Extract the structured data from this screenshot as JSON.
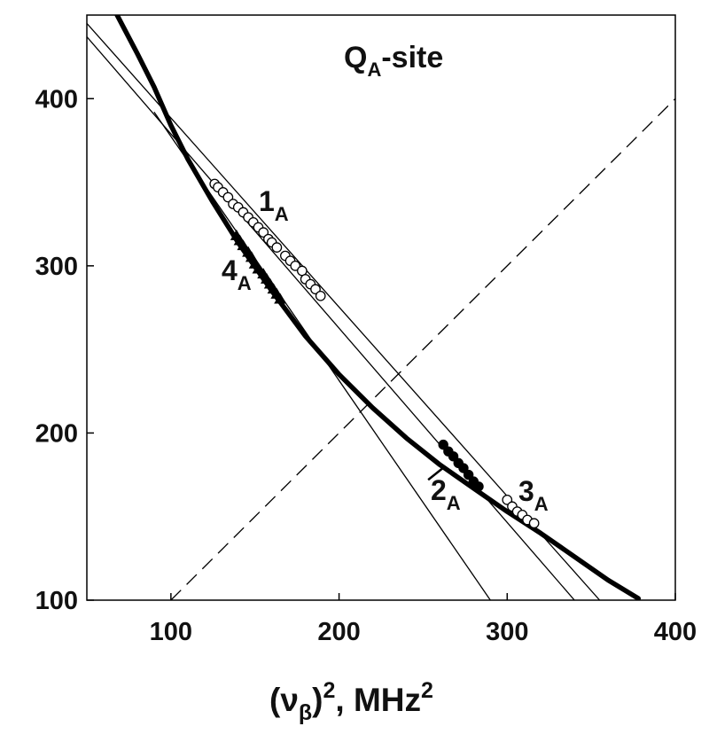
{
  "chart_data": {
    "type": "scatter",
    "title": "Q",
    "title_sub": "A",
    "title_rest": "-site",
    "xlabel_parts": {
      "open": "(ν",
      "sub": "β",
      "close": ")",
      "sup": "2",
      "unit": ", MHz",
      "unit_sup": "2"
    },
    "ylabel": "",
    "xlim": [
      50,
      400
    ],
    "ylim": [
      100,
      450
    ],
    "xticks": [
      100,
      200,
      300,
      400
    ],
    "yticks": [
      100,
      200,
      300,
      400
    ],
    "grid": false,
    "series": [
      {
        "label": "1",
        "label_sub": "A",
        "marker": "open-circle",
        "points": [
          [
            126,
            349
          ],
          [
            128,
            347
          ],
          [
            131,
            344
          ],
          [
            134,
            341
          ],
          [
            137,
            337
          ],
          [
            140,
            335
          ],
          [
            143,
            332
          ],
          [
            146,
            329
          ],
          [
            149,
            326
          ],
          [
            152,
            323
          ],
          [
            155,
            320
          ],
          [
            158,
            316
          ],
          [
            160,
            314
          ],
          [
            163,
            311
          ],
          [
            168,
            306
          ],
          [
            171,
            303
          ],
          [
            174,
            300
          ],
          [
            178,
            297
          ],
          [
            180,
            292
          ],
          [
            183,
            289
          ],
          [
            186,
            286
          ],
          [
            189,
            282
          ]
        ]
      },
      {
        "label": "2",
        "label_sub": "A",
        "marker": "filled-circle",
        "points": [
          [
            262,
            193
          ],
          [
            265,
            189
          ],
          [
            268,
            186
          ],
          [
            271,
            182
          ],
          [
            274,
            179
          ],
          [
            277,
            175
          ],
          [
            280,
            171
          ],
          [
            283,
            168
          ]
        ]
      },
      {
        "label": "3",
        "label_sub": "A",
        "marker": "open-circle",
        "points": [
          [
            300,
            160
          ],
          [
            303,
            156
          ],
          [
            306,
            153
          ],
          [
            309,
            151
          ],
          [
            312,
            148
          ],
          [
            316,
            146
          ]
        ]
      },
      {
        "label": "4",
        "label_sub": "A",
        "marker": "filled-triangle",
        "points": [
          [
            139,
            318
          ],
          [
            141,
            315
          ],
          [
            143,
            312
          ],
          [
            146,
            308
          ],
          [
            148,
            305
          ],
          [
            150,
            301
          ],
          [
            152,
            298
          ],
          [
            155,
            295
          ],
          [
            157,
            292
          ],
          [
            159,
            289
          ],
          [
            161,
            286
          ],
          [
            163,
            283
          ],
          [
            165,
            280
          ]
        ]
      }
    ],
    "lines": [
      {
        "name": "diagonal-dashed",
        "style": "dashed",
        "x": [
          100,
          400
        ],
        "y": [
          100,
          400
        ]
      },
      {
        "name": "fit-line-a",
        "style": "thin",
        "x": [
          50,
          355
        ],
        "y": [
          445,
          100
        ]
      },
      {
        "name": "fit-line-b",
        "style": "thin",
        "x": [
          50,
          340
        ],
        "y": [
          437,
          100
        ]
      },
      {
        "name": "fit-line-c",
        "style": "thin",
        "x": [
          90,
          290
        ],
        "y": [
          392,
          100
        ]
      },
      {
        "name": "short-segment-2a",
        "style": "medium",
        "x": [
          253,
          263
        ],
        "y": [
          172,
          180
        ]
      }
    ],
    "curve": {
      "name": "hyperbola-thick",
      "style": "thick",
      "x": [
        68,
        80,
        90,
        100,
        110,
        125,
        140,
        160,
        180,
        200,
        220,
        240,
        260,
        280,
        300,
        320,
        340,
        360,
        378
      ],
      "y": [
        450,
        427,
        407,
        384,
        364,
        338,
        314,
        285,
        258,
        235,
        215,
        197,
        181,
        167,
        153,
        140,
        126,
        112,
        101
      ]
    }
  }
}
